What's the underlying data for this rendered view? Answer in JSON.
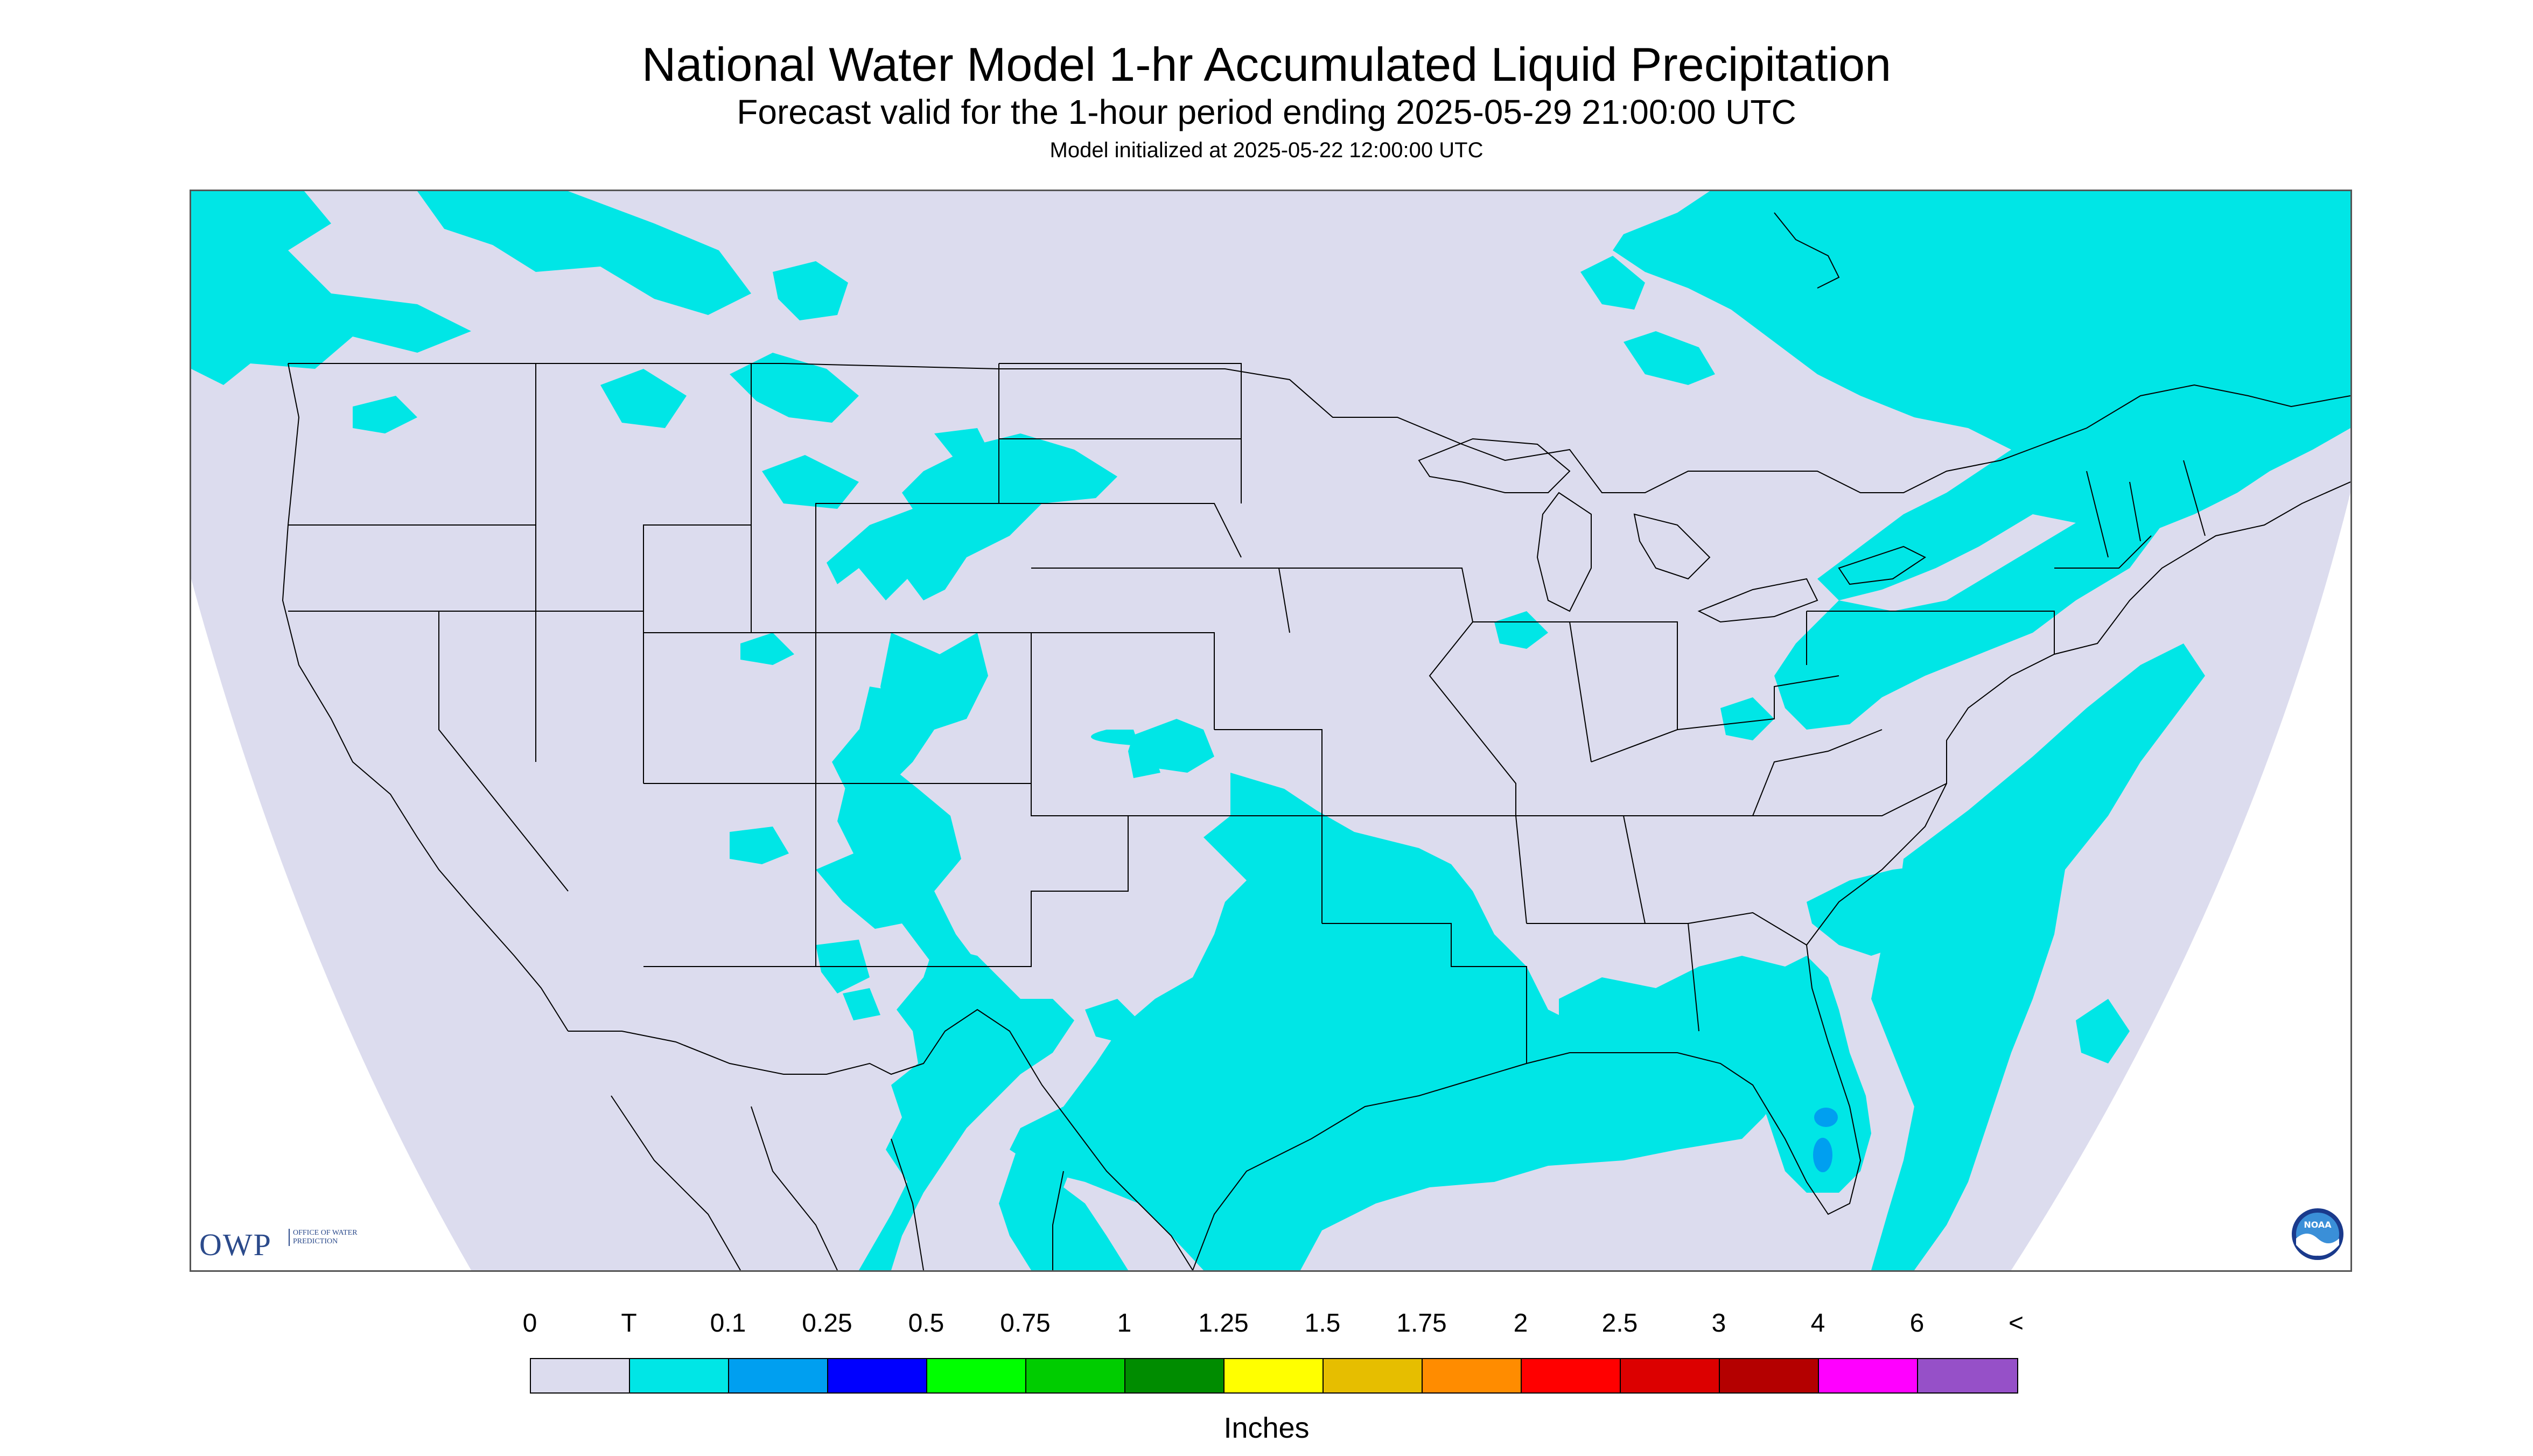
{
  "header": {
    "title": "National Water Model 1-hr Accumulated Liquid Precipitation",
    "subtitle": "Forecast valid for the 1-hour period ending 2025-05-29 21:00:00 UTC",
    "init": "Model initialized at 2025-05-22 12:00:00 UTC"
  },
  "logos": {
    "owp_short": "OWP",
    "owp_long": "OFFICE OF WATER PREDICTION",
    "noaa": "NOAA"
  },
  "legend": {
    "labels": [
      "0",
      "T",
      "0.1",
      "0.25",
      "0.5",
      "0.75",
      "1",
      "1.25",
      "1.5",
      "1.75",
      "2",
      "2.5",
      "3",
      "4",
      "6",
      "<"
    ],
    "colors": [
      "#dcdcee",
      "#00e6e6",
      "#009ff0",
      "#0000ff",
      "#00ff00",
      "#00cc00",
      "#008c00",
      "#ffff00",
      "#e6be00",
      "#ff8c00",
      "#ff0000",
      "#dc0000",
      "#b40000",
      "#ff00ff",
      "#9650c8"
    ],
    "units": "Inches"
  },
  "map": {
    "background_color": "#dcdcee",
    "trace_color": "#00e6e6",
    "light_color": "#009ff0",
    "boundary_color": "#000000"
  }
}
